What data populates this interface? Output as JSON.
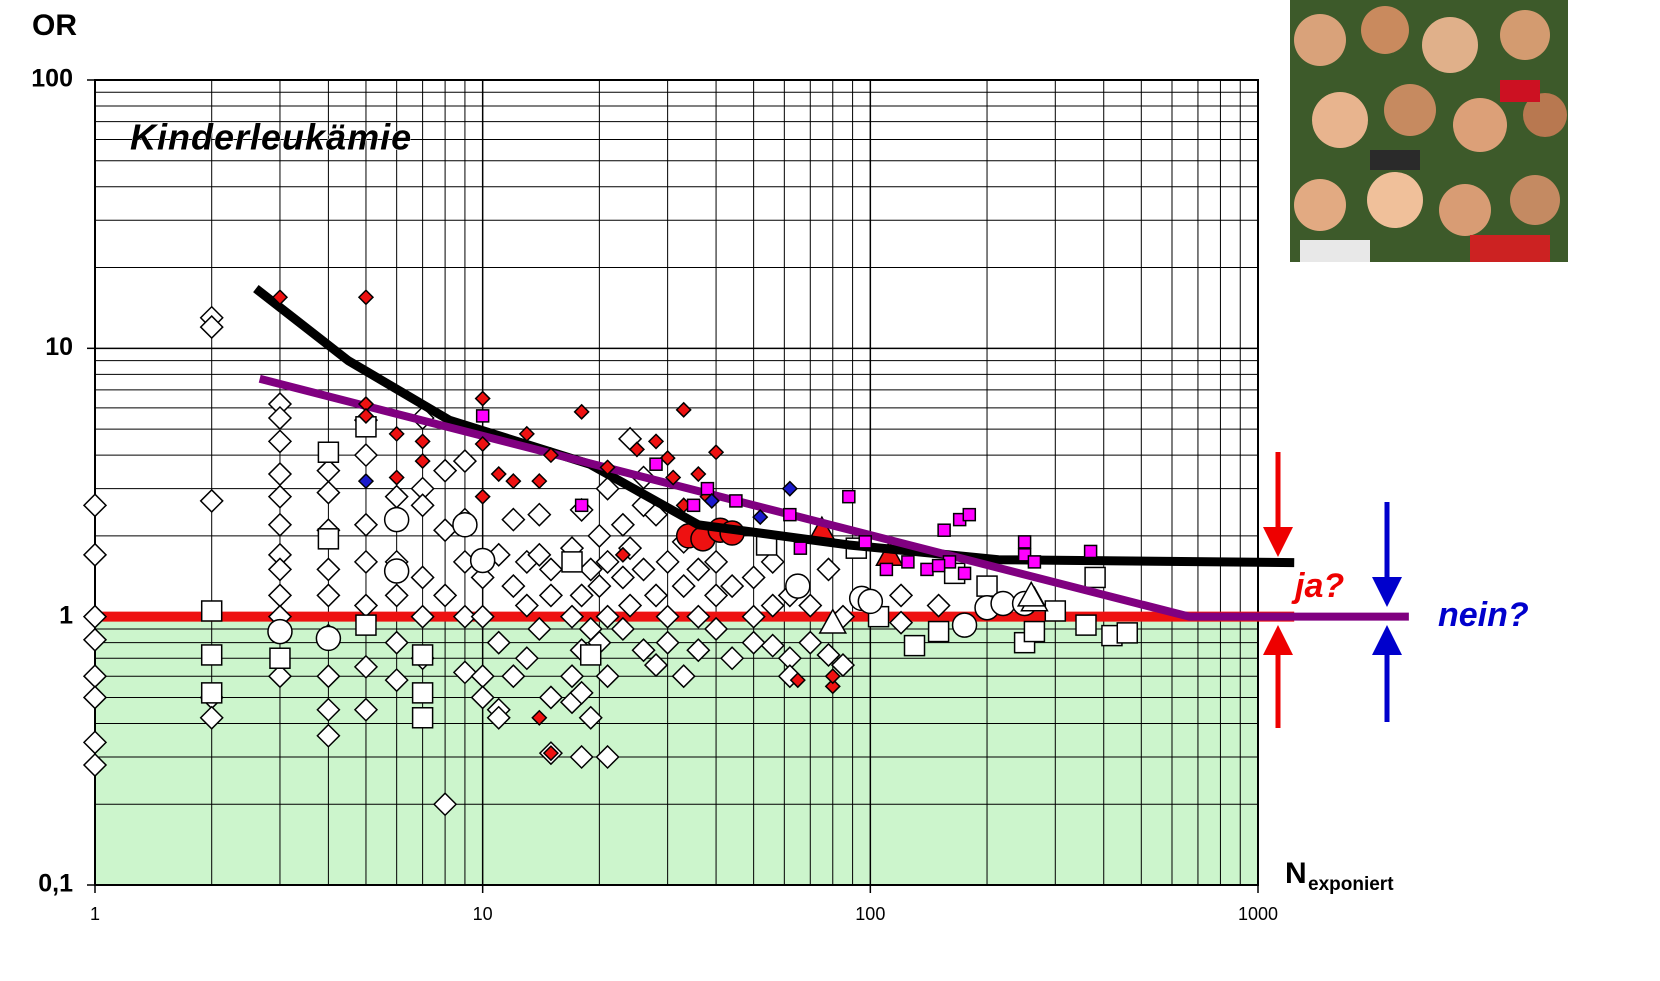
{
  "chart_data": {
    "type": "scatter",
    "title": "Kinderleukämie",
    "y_label": "OR",
    "x_label": "N",
    "x_label_sub": "exponiert",
    "log_x": true,
    "log_y": true,
    "grid": true,
    "xlim": [
      1,
      1000
    ],
    "ylim": [
      0.1,
      100
    ],
    "xticks": [
      1,
      10,
      100,
      1000
    ],
    "yticks": [
      {
        "value": 0.1,
        "label": "0,1"
      },
      1,
      10,
      100
    ],
    "shade_below": 1,
    "shade_color": "#ccf5cc",
    "annotations": [
      {
        "text": "ja?",
        "color": "#ee0000"
      },
      {
        "text": "nein?",
        "color": "#0000cc"
      }
    ],
    "series": [
      {
        "kind": "line",
        "color": "#ee1111",
        "width": 10,
        "x": [
          1,
          1240
        ],
        "values": [
          1,
          1
        ]
      },
      {
        "kind": "scatter",
        "marker": "diamond",
        "color": "#ffffff",
        "size": 11,
        "x": [
          1,
          1,
          1,
          1,
          1,
          1,
          1,
          1,
          2,
          2,
          2,
          2,
          2,
          3,
          3,
          3,
          3,
          3,
          3,
          3,
          3,
          3,
          3,
          3,
          4,
          4,
          4,
          4,
          4,
          4,
          4,
          4,
          4,
          5,
          5,
          5,
          5,
          5,
          5,
          5,
          6,
          6,
          6,
          6,
          6,
          7,
          7,
          7,
          7,
          7,
          7,
          8,
          8,
          8,
          8,
          9,
          9,
          9,
          9,
          9,
          10,
          10,
          10,
          10,
          11,
          11,
          11,
          11,
          12,
          12,
          12,
          13,
          13,
          13,
          14,
          14,
          14,
          15,
          15,
          15,
          15,
          17,
          17,
          17,
          17,
          18,
          18,
          18,
          18,
          18,
          19,
          19,
          19,
          20,
          20,
          20,
          21,
          21,
          21,
          21,
          21,
          23,
          23,
          23,
          24,
          24,
          24,
          26,
          26,
          26,
          26,
          28,
          28,
          28,
          30,
          30,
          30,
          33,
          33,
          33,
          36,
          36,
          36,
          40,
          40,
          40,
          44,
          44,
          50,
          50,
          50,
          56,
          56,
          56,
          62,
          62,
          62,
          70,
          70,
          78,
          78,
          85,
          85,
          120,
          120,
          150
        ],
        "values": [
          2.6,
          1.7,
          1.0,
          0.82,
          0.6,
          0.5,
          0.34,
          0.28,
          13,
          12,
          2.7,
          0.5,
          0.42,
          6.2,
          5.5,
          4.5,
          3.4,
          2.8,
          2.2,
          1.7,
          1.5,
          1.2,
          1.0,
          0.6,
          3.5,
          2.9,
          2.1,
          1.5,
          1.2,
          0.85,
          0.6,
          0.45,
          0.36,
          5.4,
          4.0,
          2.2,
          1.6,
          1.1,
          0.65,
          0.45,
          2.8,
          1.6,
          1.2,
          0.8,
          0.58,
          5.5,
          3.0,
          2.6,
          1.4,
          1.0,
          0.7,
          3.5,
          2.1,
          1.2,
          0.2,
          3.8,
          2.3,
          1.6,
          1.0,
          0.62,
          1.4,
          1.0,
          0.6,
          0.5,
          1.7,
          0.8,
          0.45,
          0.42,
          2.3,
          1.3,
          0.6,
          1.6,
          1.1,
          0.7,
          2.4,
          1.7,
          0.9,
          1.5,
          1.2,
          0.5,
          0.31,
          1.8,
          1.0,
          0.6,
          0.48,
          2.5,
          1.2,
          0.75,
          0.3,
          0.52,
          1.5,
          0.9,
          0.42,
          2.0,
          1.3,
          0.8,
          3.0,
          1.6,
          1.0,
          0.6,
          0.3,
          2.2,
          1.4,
          0.9,
          4.6,
          1.8,
          1.1,
          3.3,
          2.6,
          1.5,
          0.75,
          2.4,
          1.2,
          0.66,
          1.6,
          1.0,
          0.8,
          1.9,
          1.3,
          0.6,
          1.5,
          1.0,
          0.75,
          1.6,
          1.2,
          0.9,
          1.3,
          0.7,
          1.4,
          1.0,
          0.8,
          1.6,
          1.1,
          0.78,
          1.2,
          0.7,
          0.6,
          0.8,
          1.1,
          1.5,
          0.72,
          0.66,
          1.0,
          1.2,
          0.95,
          1.1
        ]
      },
      {
        "kind": "scatter",
        "marker": "square",
        "color": "#ffffff",
        "size": 10,
        "x": [
          2,
          2,
          2,
          3,
          4,
          4,
          5,
          5,
          7,
          7,
          7,
          17,
          19,
          54,
          92,
          105,
          130,
          150,
          165,
          200,
          250,
          265,
          300,
          360,
          380,
          420,
          460
        ],
        "values": [
          1.05,
          0.72,
          0.52,
          0.7,
          4.1,
          1.95,
          0.93,
          5.1,
          0.72,
          0.52,
          0.42,
          1.6,
          0.72,
          1.85,
          1.8,
          1.0,
          0.78,
          0.88,
          1.45,
          1.3,
          0.8,
          0.88,
          1.05,
          0.93,
          1.4,
          0.85,
          0.87
        ]
      },
      {
        "kind": "scatter",
        "marker": "circle",
        "color": "#ffffff",
        "size": 12,
        "x": [
          3,
          4,
          6,
          6,
          9,
          10,
          65,
          95,
          100,
          175,
          200,
          220,
          250
        ],
        "values": [
          0.88,
          0.83,
          2.3,
          1.48,
          2.2,
          1.62,
          1.3,
          1.17,
          1.14,
          0.93,
          1.08,
          1.12,
          1.12
        ]
      },
      {
        "kind": "scatter",
        "marker": "triangle",
        "color": "#ffffff",
        "size": 13,
        "x": [
          80,
          265,
          260
        ],
        "values": [
          0.95,
          1.15,
          1.2
        ]
      },
      {
        "kind": "scatter",
        "marker": "circle",
        "color": "#ee1111",
        "size": 12,
        "x": [
          34,
          37,
          41,
          44
        ],
        "values": [
          2.0,
          1.95,
          2.1,
          2.05
        ]
      },
      {
        "kind": "scatter",
        "marker": "triangle",
        "color": "#ee1111",
        "size": 13,
        "x": [
          75,
          112
        ],
        "values": [
          2.1,
          1.7
        ]
      },
      {
        "kind": "line",
        "color": "#000000",
        "width": 9,
        "x": [
          2.6,
          4.5,
          8.2,
          18.9,
          36,
          88,
          214,
          1240
        ],
        "values": [
          16.7,
          9.0,
          5.4,
          3.7,
          2.2,
          1.85,
          1.63,
          1.59
        ]
      },
      {
        "kind": "line",
        "color": "#800080",
        "width": 8,
        "x": [
          2.66,
          665,
          2450
        ],
        "values": [
          7.7,
          1.0,
          1.0
        ]
      },
      {
        "kind": "scatter",
        "marker": "diamond",
        "color": "#ee1111",
        "size": 7,
        "x": [
          3,
          5,
          5,
          5,
          6,
          6,
          7,
          7,
          10,
          10,
          10,
          11,
          12,
          13,
          14,
          15,
          18,
          21,
          23,
          25,
          28,
          30,
          31,
          33,
          33,
          36,
          38,
          40,
          14,
          15,
          65,
          80,
          80
        ],
        "values": [
          15.5,
          15.5,
          6.2,
          5.6,
          4.8,
          3.3,
          4.5,
          3.8,
          6.5,
          4.4,
          2.8,
          3.4,
          3.2,
          4.8,
          3.2,
          4.0,
          5.8,
          3.6,
          1.7,
          4.2,
          4.5,
          3.9,
          3.3,
          5.9,
          2.6,
          3.4,
          2.8,
          4.1,
          0.42,
          0.31,
          0.58,
          0.55,
          0.6
        ]
      },
      {
        "kind": "scatter",
        "marker": "square",
        "color": "#ff00ff",
        "size": 6,
        "x": [
          10,
          18,
          28,
          35,
          38,
          45,
          62,
          66,
          88,
          97,
          110,
          125,
          140,
          155,
          160,
          170,
          180,
          175,
          250,
          250,
          265,
          370,
          150
        ],
        "values": [
          5.6,
          2.6,
          3.7,
          2.6,
          3.0,
          2.7,
          2.4,
          1.8,
          2.8,
          1.9,
          1.5,
          1.6,
          1.5,
          2.1,
          1.6,
          2.3,
          2.4,
          1.45,
          1.9,
          1.7,
          1.6,
          1.75,
          1.55
        ]
      },
      {
        "kind": "scatter",
        "marker": "diamond",
        "color": "#1a1acc",
        "size": 7,
        "x": [
          5,
          39,
          52,
          62
        ],
        "values": [
          3.2,
          2.7,
          2.35,
          3.0
        ]
      }
    ]
  }
}
